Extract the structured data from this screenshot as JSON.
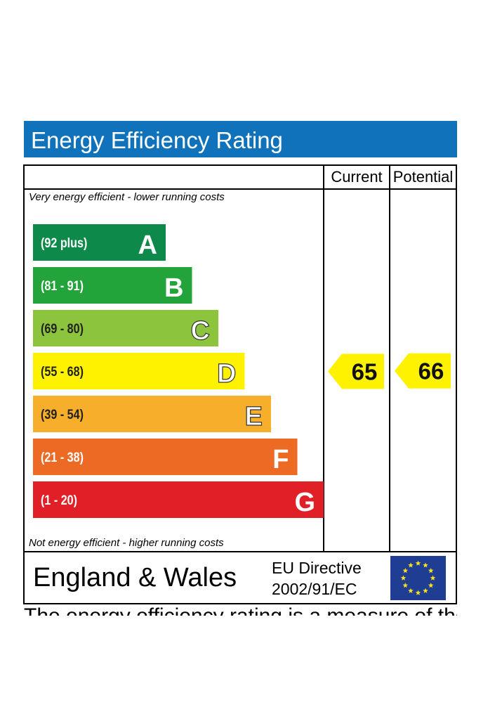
{
  "title": "Energy Efficiency Rating",
  "colors": {
    "title_bg": "#0f72ba",
    "A": "#0d8a4a",
    "B": "#23a43a",
    "C": "#8cc43e",
    "D": "#fff200",
    "E": "#f7ae2b",
    "F": "#ed6a25",
    "G": "#e01f26",
    "indicator": "#fff200",
    "eu_blue": "#1f3e93",
    "eu_star": "#ffe21a"
  },
  "columns": {
    "current": "Current",
    "potential": "Potential"
  },
  "notes": {
    "top": "Very energy efficient - lower running costs",
    "bottom": "Not energy efficient - higher running costs"
  },
  "chart_data": {
    "type": "bar",
    "title": "Energy Efficiency Rating",
    "categories": [
      "A",
      "B",
      "C",
      "D",
      "E",
      "F",
      "G"
    ],
    "ranges": [
      "(92 plus)",
      "(81 - 91)",
      "(69 - 80)",
      "(55 - 68)",
      "(39 - 54)",
      "(21 - 38)",
      "(1 - 20)"
    ],
    "current": 65,
    "potential": 66
  },
  "footer": {
    "country": "England & Wales",
    "directive_line1": "EU Directive",
    "directive_line2": "2002/91/EC",
    "flag_icon": "eu-flag-icon"
  },
  "cut_text": "The energy efficiency rating is a measure of the"
}
